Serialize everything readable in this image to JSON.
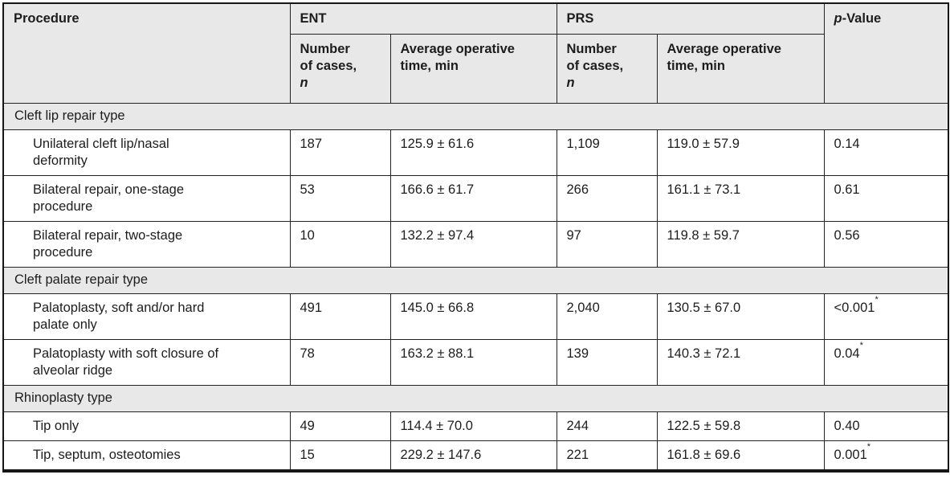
{
  "colors": {
    "header_bg": "#e8e8e8",
    "section_bg": "#e8e8e8",
    "border": "#242424",
    "outer_border": "#161616",
    "text": "#1d1d1d",
    "row_bg": "#ffffff"
  },
  "table": {
    "header": {
      "procedure": "Procedure",
      "ent": "ENT",
      "prs": "PRS",
      "p_italic": "p",
      "p_rest": "-Value",
      "cases_line1": "Number",
      "cases_line2": "of cases,",
      "cases_symbol": "n",
      "avg_time_line1": "Average operative",
      "avg_time_line2": "time, min"
    },
    "sections": [
      {
        "label": "Cleft lip repair type",
        "rows": [
          {
            "procedure": "Unilateral cleft lip/nasal deformity",
            "ent_n": "187",
            "ent_time": "125.9 ± 61.6",
            "prs_n": "1,109",
            "prs_time": "119.0 ± 57.9",
            "p": "0.14",
            "p_star": ""
          },
          {
            "procedure": "Bilateral repair, one-stage procedure",
            "ent_n": "53",
            "ent_time": "166.6 ± 61.7",
            "prs_n": "266",
            "prs_time": "161.1 ± 73.1",
            "p": "0.61",
            "p_star": ""
          },
          {
            "procedure": "Bilateral repair, two-stage procedure",
            "ent_n": "10",
            "ent_time": "132.2 ± 97.4",
            "prs_n": "97",
            "prs_time": "119.8 ± 59.7",
            "p": "0.56",
            "p_star": ""
          }
        ]
      },
      {
        "label": "Cleft palate repair type",
        "rows": [
          {
            "procedure": "Palatoplasty, soft and/or hard palate only",
            "ent_n": "491",
            "ent_time": "145.0 ± 66.8",
            "prs_n": "2,040",
            "prs_time": "130.5 ± 67.0",
            "p": "<0.001",
            "p_star": "*"
          },
          {
            "procedure": "Palatoplasty with soft closure of alveolar ridge",
            "ent_n": "78",
            "ent_time": "163.2 ± 88.1",
            "prs_n": "139",
            "prs_time": "140.3 ± 72.1",
            "p": "0.04",
            "p_star": "*"
          }
        ]
      },
      {
        "label": "Rhinoplasty type",
        "rows": [
          {
            "procedure": "Tip only",
            "ent_n": "49",
            "ent_time": "114.4 ± 70.0",
            "prs_n": "244",
            "prs_time": "122.5 ± 59.8",
            "p": "0.40",
            "p_star": ""
          },
          {
            "procedure": "Tip, septum, osteotomies",
            "ent_n": "15",
            "ent_time": "229.2 ± 147.6",
            "prs_n": "221",
            "prs_time": "161.8 ± 69.6",
            "p": "0.001",
            "p_star": "*"
          }
        ]
      }
    ]
  }
}
